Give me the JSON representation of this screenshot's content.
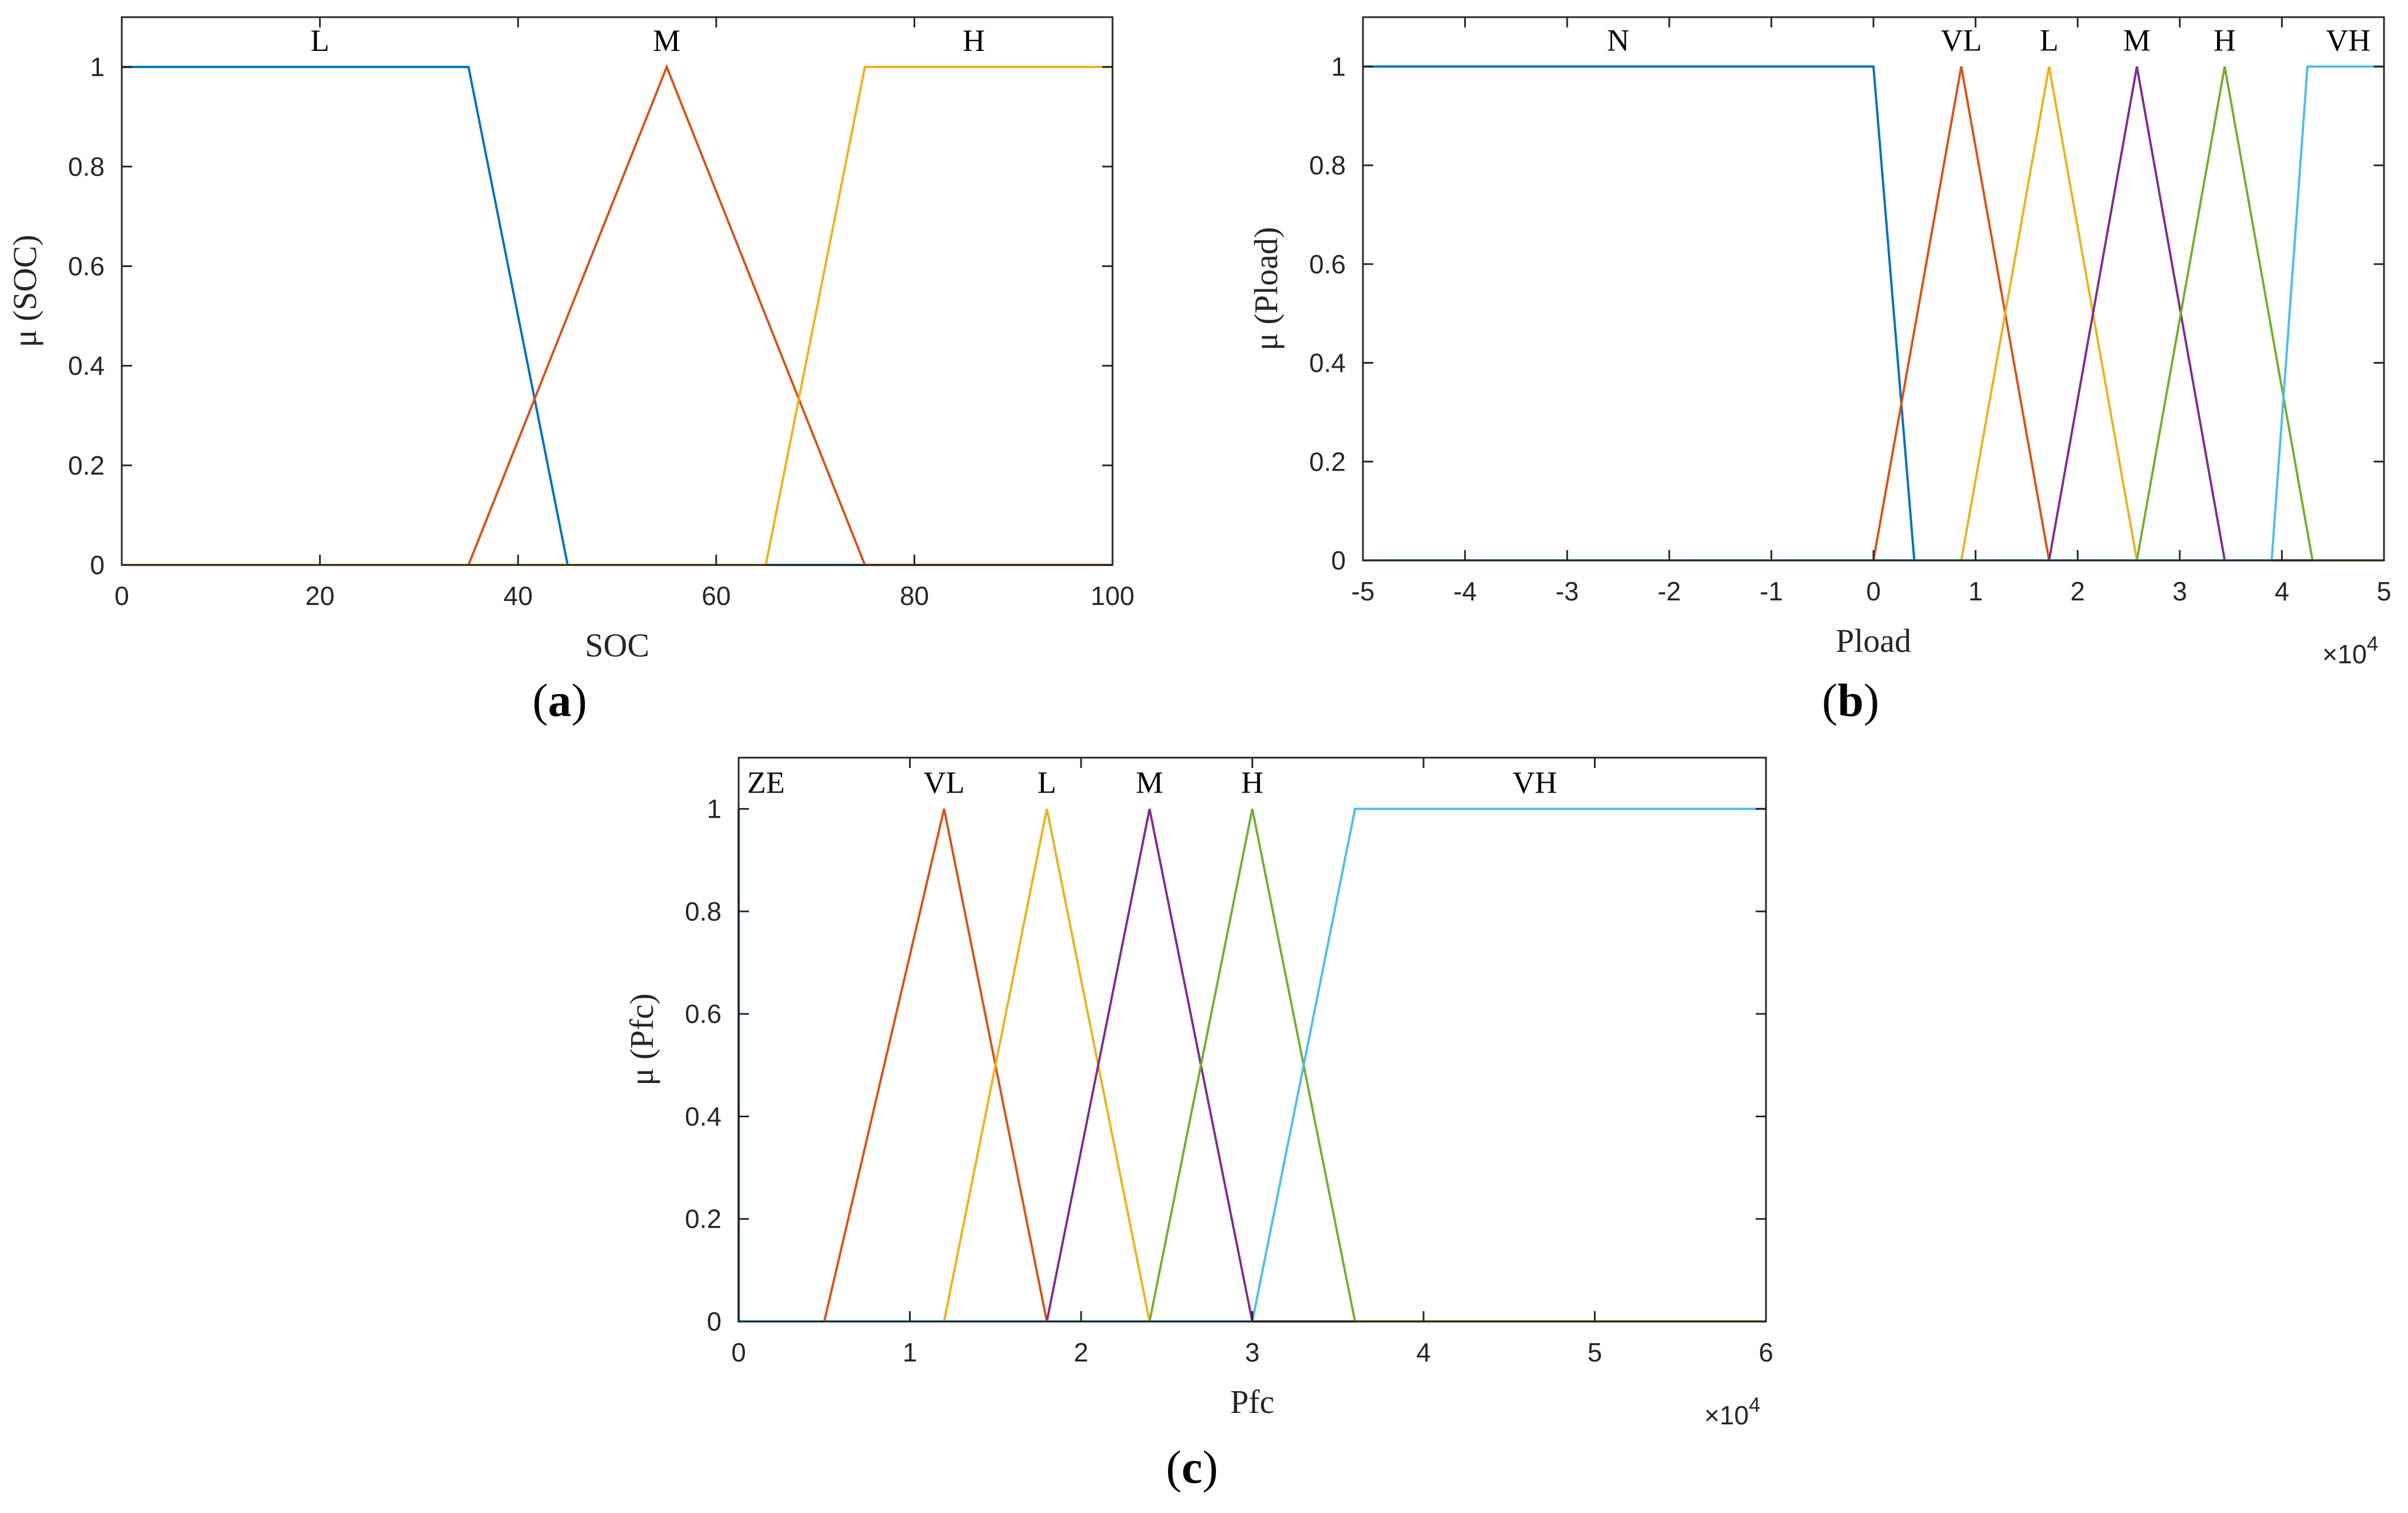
{
  "colors": {
    "blue": "#0072BD",
    "orange": "#D95319",
    "yellow": "#EDB120",
    "purple": "#7E2F8E",
    "green": "#77AC30",
    "cyan": "#4DBEEE"
  },
  "chart_data": [
    {
      "id": "a",
      "type": "line",
      "panel_label": "a",
      "xlabel": "SOC",
      "ylabel": "μ (SOC)",
      "xlim": [
        0,
        100
      ],
      "ylim": [
        0,
        1.1
      ],
      "x_ticks": [
        0,
        20,
        40,
        60,
        80,
        100
      ],
      "x_tick_labels": [
        "0",
        "20",
        "40",
        "60",
        "80",
        "100"
      ],
      "y_ticks": [
        0,
        0.2,
        0.4,
        0.6,
        0.8,
        1
      ],
      "y_tick_labels": [
        "0",
        "0.2",
        "0.4",
        "0.6",
        "0.8",
        "1"
      ],
      "x_exponent_label": "",
      "grid": false,
      "series": [
        {
          "name": "L",
          "color": "blue",
          "points": [
            [
              0,
              1
            ],
            [
              35,
              1
            ],
            [
              45,
              0
            ],
            [
              100,
              0
            ]
          ],
          "label_x": 20
        },
        {
          "name": "M",
          "color": "orange",
          "points": [
            [
              0,
              0
            ],
            [
              35,
              0
            ],
            [
              55,
              1
            ],
            [
              75,
              0
            ],
            [
              100,
              0
            ]
          ],
          "label_x": 55
        },
        {
          "name": "H",
          "color": "yellow",
          "points": [
            [
              0,
              0
            ],
            [
              65,
              0
            ],
            [
              75,
              1
            ],
            [
              100,
              1
            ]
          ],
          "label_x": 86
        }
      ]
    },
    {
      "id": "b",
      "type": "line",
      "panel_label": "b",
      "xlabel": "Pload",
      "ylabel": "μ (Pload)",
      "xlim": [
        -5,
        5
      ],
      "ylim": [
        0,
        1.1
      ],
      "x_ticks": [
        -5,
        -4,
        -3,
        -2,
        -1,
        0,
        1,
        2,
        3,
        4,
        5
      ],
      "x_tick_labels": [
        "-5",
        "-4",
        "-3",
        "-2",
        "-1",
        "0",
        "1",
        "2",
        "3",
        "4",
        "5"
      ],
      "y_ticks": [
        0,
        0.2,
        0.4,
        0.6,
        0.8,
        1
      ],
      "y_tick_labels": [
        "0",
        "0.2",
        "0.4",
        "0.6",
        "0.8",
        "1"
      ],
      "x_exponent_label": "×10",
      "x_exponent_power": "4",
      "grid": false,
      "series": [
        {
          "name": "N",
          "color": "blue",
          "points": [
            [
              -5,
              1
            ],
            [
              0,
              1
            ],
            [
              0.4,
              0
            ],
            [
              5,
              0
            ]
          ],
          "label_x": -2.5
        },
        {
          "name": "VL",
          "color": "orange",
          "points": [
            [
              -5,
              0
            ],
            [
              0,
              0
            ],
            [
              0.86,
              1
            ],
            [
              1.72,
              0
            ],
            [
              5,
              0
            ]
          ],
          "label_x": 0.86
        },
        {
          "name": "L",
          "color": "yellow",
          "points": [
            [
              -5,
              0
            ],
            [
              0.86,
              0
            ],
            [
              1.72,
              1
            ],
            [
              2.58,
              0
            ],
            [
              5,
              0
            ]
          ],
          "label_x": 1.72
        },
        {
          "name": "M",
          "color": "purple",
          "points": [
            [
              -5,
              0
            ],
            [
              1.72,
              0
            ],
            [
              2.58,
              1
            ],
            [
              3.44,
              0
            ],
            [
              5,
              0
            ]
          ],
          "label_x": 2.58
        },
        {
          "name": "H",
          "color": "green",
          "points": [
            [
              -5,
              0
            ],
            [
              2.58,
              0
            ],
            [
              3.44,
              1
            ],
            [
              4.3,
              0
            ],
            [
              5,
              0
            ]
          ],
          "label_x": 3.44
        },
        {
          "name": "VH",
          "color": "cyan",
          "points": [
            [
              -5,
              0
            ],
            [
              3.9,
              0
            ],
            [
              4.25,
              1
            ],
            [
              5,
              1
            ]
          ],
          "label_x": 4.65
        }
      ]
    },
    {
      "id": "c",
      "type": "line",
      "panel_label": "c",
      "xlabel": "Pfc",
      "ylabel": "μ (Pfc)",
      "xlim": [
        0,
        6
      ],
      "ylim": [
        0,
        1.1
      ],
      "x_ticks": [
        0,
        1,
        2,
        3,
        4,
        5,
        6
      ],
      "x_tick_labels": [
        "0",
        "1",
        "2",
        "3",
        "4",
        "5",
        "6"
      ],
      "y_ticks": [
        0,
        0.2,
        0.4,
        0.6,
        0.8,
        1
      ],
      "y_tick_labels": [
        "0",
        "0.2",
        "0.4",
        "0.6",
        "0.8",
        "1"
      ],
      "x_exponent_label": "×10",
      "x_exponent_power": "4",
      "grid": false,
      "series": [
        {
          "name": "ZE",
          "color": "blue",
          "points": [
            [
              0,
              1
            ],
            [
              0,
              0
            ],
            [
              6,
              0
            ]
          ],
          "label_x": 0.16
        },
        {
          "name": "VL",
          "color": "orange",
          "points": [
            [
              0,
              0
            ],
            [
              0.5,
              0
            ],
            [
              1.2,
              1
            ],
            [
              1.8,
              0
            ],
            [
              6,
              0
            ]
          ],
          "label_x": 1.2
        },
        {
          "name": "L",
          "color": "yellow",
          "points": [
            [
              0,
              0
            ],
            [
              1.2,
              0
            ],
            [
              1.8,
              1
            ],
            [
              2.4,
              0
            ],
            [
              6,
              0
            ]
          ],
          "label_x": 1.8
        },
        {
          "name": "M",
          "color": "purple",
          "points": [
            [
              0,
              0
            ],
            [
              1.8,
              0
            ],
            [
              2.4,
              1
            ],
            [
              3.0,
              0
            ],
            [
              6,
              0
            ]
          ],
          "label_x": 2.4
        },
        {
          "name": "H",
          "color": "green",
          "points": [
            [
              0,
              0
            ],
            [
              2.4,
              0
            ],
            [
              3.0,
              1
            ],
            [
              3.6,
              0
            ],
            [
              6,
              0
            ]
          ],
          "label_x": 3.0
        },
        {
          "name": "VH",
          "color": "cyan",
          "points": [
            [
              0,
              0
            ],
            [
              3.0,
              0
            ],
            [
              3.6,
              1
            ],
            [
              6,
              1
            ]
          ],
          "label_x": 4.65
        }
      ]
    }
  ]
}
